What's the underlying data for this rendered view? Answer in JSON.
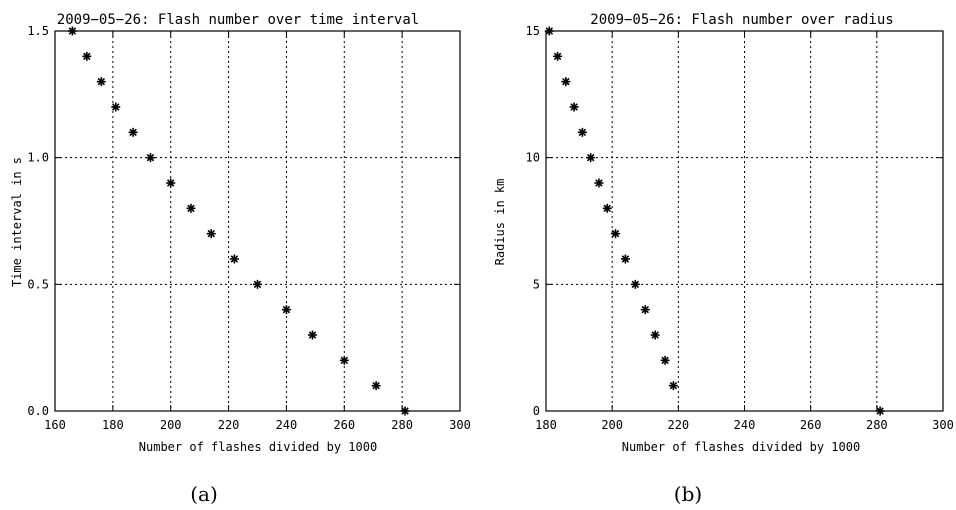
{
  "chart_data": [
    {
      "type": "scatter",
      "title": "2009−05−26: Flash number over time interval",
      "xlabel": "Number of flashes divided by 1000",
      "ylabel": "Time interval in s",
      "xlim": [
        160,
        300
      ],
      "ylim": [
        0,
        1.5
      ],
      "x_ticks": [
        160,
        180,
        200,
        220,
        240,
        260,
        280,
        300
      ],
      "x_tick_labels": [
        "160",
        "180",
        "200",
        "220",
        "240",
        "260",
        "280",
        "300"
      ],
      "y_ticks": [
        0,
        0.5,
        1.0,
        1.5
      ],
      "y_tick_labels": [
        "0.0",
        "0.5",
        "1.0",
        "1.5"
      ],
      "grid": "dotted",
      "marker": "asterisk",
      "caption": "(a)",
      "points": [
        {
          "x": 166,
          "y": 1.5
        },
        {
          "x": 171,
          "y": 1.4
        },
        {
          "x": 176,
          "y": 1.3
        },
        {
          "x": 181,
          "y": 1.2
        },
        {
          "x": 187,
          "y": 1.1
        },
        {
          "x": 193,
          "y": 1.0
        },
        {
          "x": 200,
          "y": 0.9
        },
        {
          "x": 207,
          "y": 0.8
        },
        {
          "x": 214,
          "y": 0.7
        },
        {
          "x": 222,
          "y": 0.6
        },
        {
          "x": 230,
          "y": 0.5
        },
        {
          "x": 240,
          "y": 0.4
        },
        {
          "x": 249,
          "y": 0.3
        },
        {
          "x": 260,
          "y": 0.2
        },
        {
          "x": 271,
          "y": 0.1
        },
        {
          "x": 281,
          "y": 0.0
        }
      ]
    },
    {
      "type": "scatter",
      "title": "2009−05−26: Flash number over radius",
      "xlabel": "Number of flashes divided by 1000",
      "ylabel": "Radius in km",
      "xlim": [
        180,
        300
      ],
      "ylim": [
        0,
        15
      ],
      "x_ticks": [
        180,
        200,
        220,
        240,
        260,
        280,
        300
      ],
      "x_tick_labels": [
        "180",
        "200",
        "220",
        "240",
        "260",
        "280",
        "300"
      ],
      "y_ticks": [
        0,
        5,
        10,
        15
      ],
      "y_tick_labels": [
        "0",
        "5",
        "10",
        "15"
      ],
      "grid": "dotted",
      "marker": "asterisk",
      "caption": "(b)",
      "points": [
        {
          "x": 181,
          "y": 15
        },
        {
          "x": 183.5,
          "y": 14
        },
        {
          "x": 186,
          "y": 13
        },
        {
          "x": 188.5,
          "y": 12
        },
        {
          "x": 191,
          "y": 11
        },
        {
          "x": 193.5,
          "y": 10
        },
        {
          "x": 196,
          "y": 9
        },
        {
          "x": 198.5,
          "y": 8
        },
        {
          "x": 201,
          "y": 7
        },
        {
          "x": 204,
          "y": 6
        },
        {
          "x": 207,
          "y": 5
        },
        {
          "x": 210,
          "y": 4
        },
        {
          "x": 213,
          "y": 3
        },
        {
          "x": 216,
          "y": 2
        },
        {
          "x": 218.5,
          "y": 1
        },
        {
          "x": 281,
          "y": 0
        }
      ]
    }
  ]
}
